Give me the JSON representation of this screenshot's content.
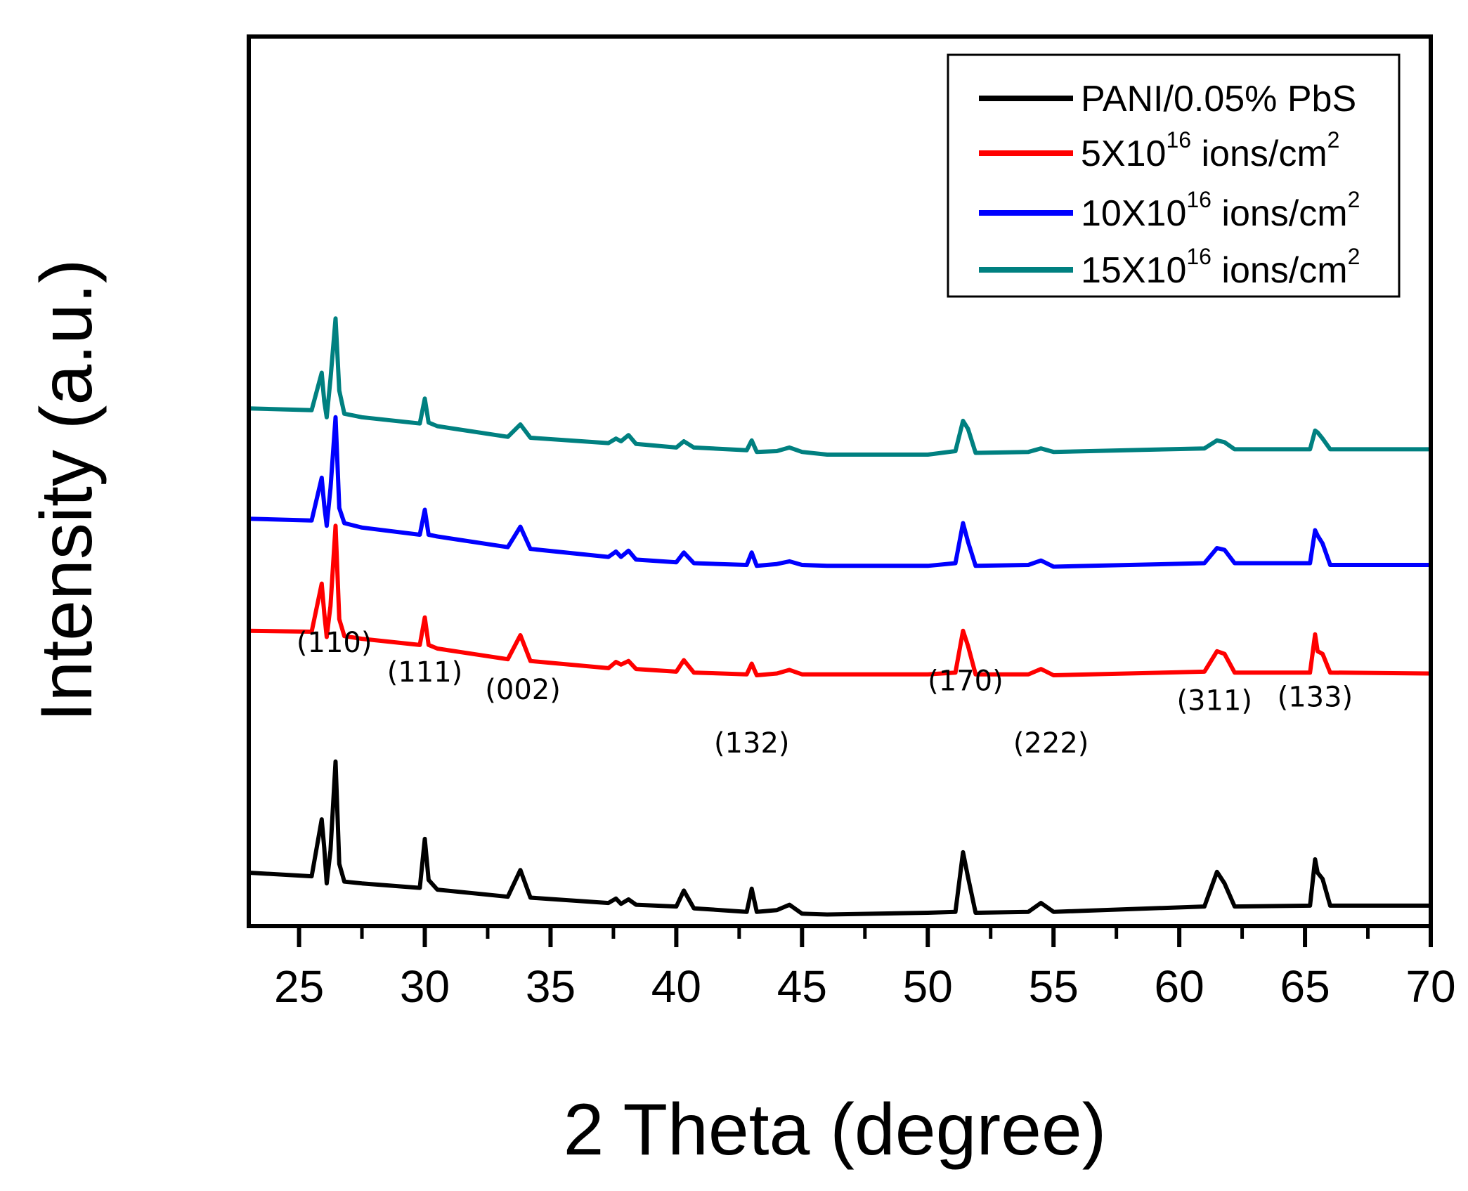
{
  "chart_data": {
    "type": "line",
    "title": "",
    "xlabel": "2 Theta (degree)",
    "ylabel": "Intensity (a.u.)",
    "xlim": [
      23,
      70
    ],
    "ylim": [
      0,
      100
    ],
    "xticks": [
      25,
      30,
      35,
      40,
      45,
      50,
      55,
      60,
      65,
      70
    ],
    "y_ticks_shown": false,
    "grid": false,
    "legend_position": "top-right",
    "peak_labels": [
      {
        "text": "(110)",
        "x": 26.4,
        "y": 30.8
      },
      {
        "text": "(111)",
        "x": 30.0,
        "y": 27.5
      },
      {
        "text": "(002)",
        "x": 33.9,
        "y": 25.5
      },
      {
        "text": "(132)",
        "x": 43.0,
        "y": 19.5
      },
      {
        "text": "(170)",
        "x": 51.5,
        "y": 26.5
      },
      {
        "text": "(222)",
        "x": 54.9,
        "y": 19.5
      },
      {
        "text": "(311)",
        "x": 61.4,
        "y": 24.3
      },
      {
        "text": "(133)",
        "x": 65.4,
        "y": 24.7
      }
    ],
    "series": [
      {
        "name": "PANI/0.05% PbS",
        "legend_main": "PANI/0.05% PbS",
        "legend_sup": "",
        "legend_tail": "",
        "color": "#000000",
        "x": [
          23.0,
          25.5,
          25.9,
          26.0,
          26.1,
          26.25,
          26.45,
          26.6,
          26.8,
          27.5,
          29.8,
          30.0,
          30.15,
          30.5,
          33.3,
          33.8,
          34.2,
          37.3,
          37.6,
          37.8,
          38.1,
          38.4,
          40.0,
          40.3,
          40.7,
          42.8,
          43.0,
          43.2,
          44.0,
          44.5,
          45.0,
          46.0,
          50.0,
          51.1,
          51.4,
          51.6,
          51.9,
          54.0,
          54.5,
          55.0,
          61.0,
          61.5,
          61.8,
          62.2,
          65.2,
          65.4,
          65.5,
          65.7,
          66.0,
          70.0
        ],
        "y": [
          6.0,
          5.6,
          12.0,
          8.8,
          4.8,
          8.5,
          18.5,
          7.0,
          5.0,
          4.8,
          4.3,
          9.8,
          5.2,
          4.1,
          3.3,
          6.3,
          3.2,
          2.6,
          3.1,
          2.5,
          3.0,
          2.4,
          2.2,
          4.0,
          2.0,
          1.6,
          4.2,
          1.6,
          1.8,
          2.4,
          1.4,
          1.3,
          1.5,
          1.6,
          8.3,
          5.5,
          1.5,
          1.6,
          2.6,
          1.6,
          2.2,
          6.1,
          4.8,
          2.2,
          2.3,
          7.5,
          6.0,
          5.3,
          2.3,
          2.3
        ]
      },
      {
        "name": "5X10^16 ions/cm^2",
        "legend_main": "5X10",
        "legend_sup": "16",
        "legend_tail": " ions/cm",
        "legend_tail_sup": "2",
        "color": "#ff0000",
        "x": [
          23.0,
          25.5,
          25.9,
          26.0,
          26.1,
          26.25,
          26.45,
          26.6,
          26.8,
          27.5,
          29.8,
          30.0,
          30.15,
          30.5,
          33.3,
          33.8,
          34.2,
          37.3,
          37.6,
          37.8,
          38.1,
          38.4,
          40.0,
          40.3,
          40.7,
          42.8,
          43.0,
          43.2,
          44.0,
          44.5,
          45.0,
          46.0,
          50.0,
          51.1,
          51.4,
          51.6,
          51.9,
          54.0,
          54.5,
          55.0,
          61.0,
          61.5,
          61.8,
          62.2,
          65.2,
          65.4,
          65.5,
          65.7,
          66.0,
          70.0
        ],
        "y": [
          33.2,
          33.1,
          38.5,
          35.2,
          32.5,
          36.0,
          45.0,
          34.5,
          32.6,
          32.3,
          31.6,
          34.7,
          31.6,
          31.2,
          30.0,
          32.7,
          29.8,
          29.0,
          29.7,
          29.4,
          29.8,
          28.9,
          28.6,
          29.9,
          28.5,
          28.3,
          29.5,
          28.2,
          28.4,
          28.8,
          28.3,
          28.3,
          28.3,
          28.5,
          33.2,
          31.5,
          28.3,
          28.3,
          28.9,
          28.2,
          28.6,
          30.9,
          30.6,
          28.5,
          28.5,
          32.8,
          30.9,
          30.6,
          28.5,
          28.4
        ]
      },
      {
        "name": "10X10^16 ions/cm^2",
        "legend_main": "10X10",
        "legend_sup": "16",
        "legend_tail": " ions/cm",
        "legend_tail_sup": "2",
        "color": "#0000ff",
        "x": [
          23.0,
          25.5,
          25.9,
          26.0,
          26.1,
          26.25,
          26.45,
          26.6,
          26.8,
          27.5,
          29.8,
          30.0,
          30.15,
          30.5,
          33.3,
          33.8,
          34.2,
          37.3,
          37.6,
          37.8,
          38.1,
          38.4,
          40.0,
          40.3,
          40.7,
          42.8,
          43.0,
          43.2,
          44.0,
          44.5,
          45.0,
          46.0,
          50.0,
          51.1,
          51.4,
          51.6,
          51.9,
          54.0,
          54.5,
          55.0,
          61.0,
          61.5,
          61.8,
          62.2,
          65.2,
          65.4,
          65.5,
          65.7,
          66.0,
          70.0
        ],
        "y": [
          45.8,
          45.6,
          50.4,
          47.3,
          45.0,
          49.2,
          57.2,
          47.0,
          45.3,
          44.8,
          44.0,
          46.8,
          44.0,
          43.8,
          42.6,
          44.9,
          42.4,
          41.5,
          42.1,
          41.5,
          42.2,
          41.2,
          40.9,
          42.0,
          40.8,
          40.6,
          42.0,
          40.5,
          40.7,
          41.0,
          40.6,
          40.5,
          40.5,
          40.8,
          45.3,
          43.2,
          40.5,
          40.6,
          41.1,
          40.4,
          40.8,
          42.5,
          42.3,
          40.8,
          40.8,
          44.5,
          43.9,
          43.0,
          40.6,
          40.6
        ]
      },
      {
        "name": "15X10^16 ions/cm^2",
        "legend_main": "15X10",
        "legend_sup": "16",
        "legend_tail": " ions/cm",
        "legend_tail_sup": "2",
        "color": "#008080",
        "x": [
          23.0,
          25.5,
          25.9,
          26.0,
          26.1,
          26.25,
          26.45,
          26.6,
          26.8,
          27.5,
          29.8,
          30.0,
          30.15,
          30.5,
          33.3,
          33.8,
          34.2,
          37.3,
          37.6,
          37.8,
          38.1,
          38.4,
          40.0,
          40.3,
          40.7,
          42.8,
          43.0,
          43.2,
          44.0,
          44.5,
          45.0,
          46.0,
          50.0,
          51.1,
          51.4,
          51.6,
          51.9,
          54.0,
          54.5,
          55.0,
          61.0,
          61.5,
          61.8,
          62.2,
          65.2,
          65.4,
          65.5,
          65.7,
          66.0,
          70.0
        ],
        "y": [
          58.2,
          58.0,
          62.2,
          59.0,
          57.2,
          61.5,
          68.3,
          60.2,
          57.6,
          57.2,
          56.5,
          59.3,
          56.6,
          56.2,
          55.0,
          56.4,
          54.9,
          54.3,
          54.8,
          54.5,
          55.2,
          54.2,
          53.8,
          54.5,
          53.8,
          53.5,
          54.6,
          53.3,
          53.4,
          53.8,
          53.3,
          53.0,
          53.0,
          53.4,
          56.8,
          55.9,
          53.2,
          53.3,
          53.7,
          53.3,
          53.7,
          54.6,
          54.4,
          53.6,
          53.6,
          55.7,
          55.5,
          54.8,
          53.6,
          53.6
        ]
      }
    ]
  }
}
